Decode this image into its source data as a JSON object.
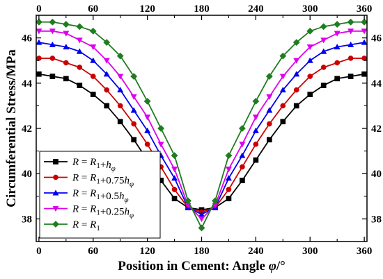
{
  "chart_data": {
    "type": "line",
    "xlabel": "Position in Cement: Angle φ/°",
    "ylabel": "Circumferential Stress/MPa",
    "xlim": [
      -3,
      363
    ],
    "ylim": [
      37,
      47
    ],
    "x_ticks": [
      0,
      60,
      120,
      180,
      240,
      300,
      360
    ],
    "y_ticks": [
      38,
      40,
      42,
      44,
      46
    ],
    "grid": false,
    "mirror_axes": true,
    "legend_position": "lower-left",
    "x": [
      0,
      15,
      30,
      45,
      60,
      75,
      90,
      105,
      120,
      135,
      150,
      165,
      180,
      195,
      210,
      225,
      240,
      255,
      270,
      285,
      300,
      315,
      330,
      345,
      360
    ],
    "series": [
      {
        "name": "R = R1+hφ",
        "legend_parts": [
          [
            "R",
            "i"
          ],
          [
            " = ",
            "n"
          ],
          [
            "R",
            "i"
          ],
          [
            "1",
            "sub"
          ],
          [
            "+",
            "n"
          ],
          [
            "h",
            "i"
          ],
          [
            "φ",
            "isub"
          ]
        ],
        "color": "#000000",
        "marker": "square",
        "values": [
          44.4,
          44.3,
          44.2,
          43.9,
          43.5,
          43.0,
          42.3,
          41.5,
          40.6,
          39.7,
          38.9,
          38.5,
          38.4,
          38.5,
          38.9,
          39.7,
          40.6,
          41.5,
          42.3,
          43.0,
          43.5,
          43.9,
          44.2,
          44.3,
          44.4
        ]
      },
      {
        "name": "R = R1+0.75hφ",
        "legend_parts": [
          [
            "R",
            "i"
          ],
          [
            " = ",
            "n"
          ],
          [
            "R",
            "i"
          ],
          [
            "1",
            "sub"
          ],
          [
            "+0.75",
            "n"
          ],
          [
            "h",
            "i"
          ],
          [
            "φ",
            "isub"
          ]
        ],
        "color": "#cc0000",
        "marker": "circle",
        "values": [
          45.1,
          45.1,
          44.9,
          44.7,
          44.3,
          43.7,
          43.0,
          42.2,
          41.3,
          40.3,
          39.3,
          38.5,
          38.3,
          38.5,
          39.3,
          40.3,
          41.3,
          42.2,
          43.0,
          43.7,
          44.3,
          44.7,
          44.9,
          45.1,
          45.1
        ]
      },
      {
        "name": "R = R1+0.5hφ",
        "legend_parts": [
          [
            "R",
            "i"
          ],
          [
            " = ",
            "n"
          ],
          [
            "R",
            "i"
          ],
          [
            "1",
            "sub"
          ],
          [
            "+0.5",
            "n"
          ],
          [
            "h",
            "i"
          ],
          [
            "φ",
            "isub"
          ]
        ],
        "color": "#0000ee",
        "marker": "triangle-up",
        "values": [
          45.8,
          45.7,
          45.6,
          45.4,
          45.0,
          44.4,
          43.7,
          42.8,
          41.9,
          40.8,
          39.8,
          38.5,
          38.2,
          38.5,
          39.8,
          40.8,
          41.9,
          42.8,
          43.7,
          44.4,
          45.0,
          45.4,
          45.6,
          45.7,
          45.8
        ]
      },
      {
        "name": "R = R1+0.25hφ",
        "legend_parts": [
          [
            "R",
            "i"
          ],
          [
            " = ",
            "n"
          ],
          [
            "R",
            "i"
          ],
          [
            "1",
            "sub"
          ],
          [
            "+0.25",
            "n"
          ],
          [
            "h",
            "i"
          ],
          [
            "φ",
            "isub"
          ]
        ],
        "color": "#dd00ee",
        "marker": "triangle-down",
        "values": [
          46.3,
          46.3,
          46.2,
          45.9,
          45.6,
          45.0,
          44.3,
          43.4,
          42.5,
          41.3,
          40.2,
          38.6,
          38.0,
          38.6,
          40.2,
          41.3,
          42.5,
          43.4,
          44.3,
          45.0,
          45.6,
          45.9,
          46.2,
          46.3,
          46.3
        ]
      },
      {
        "name": "R = R1",
        "legend_parts": [
          [
            "R",
            "i"
          ],
          [
            " = ",
            "n"
          ],
          [
            "R",
            "i"
          ],
          [
            "1",
            "sub"
          ]
        ],
        "color": "#1e7d1e",
        "marker": "diamond",
        "values": [
          46.7,
          46.7,
          46.6,
          46.5,
          46.3,
          45.8,
          45.2,
          44.3,
          43.2,
          42.0,
          40.8,
          38.8,
          37.6,
          38.8,
          40.8,
          42.0,
          43.2,
          44.3,
          45.2,
          45.8,
          46.3,
          46.5,
          46.6,
          46.7,
          46.7
        ]
      }
    ]
  }
}
